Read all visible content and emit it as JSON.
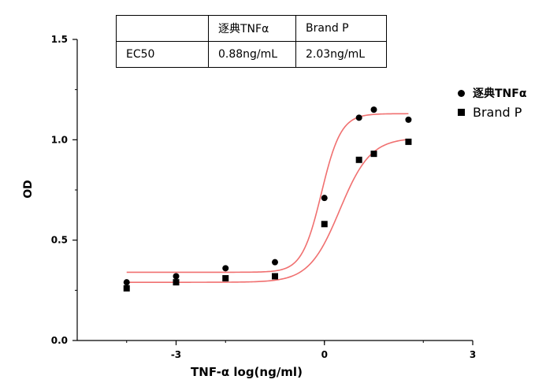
{
  "table": {
    "header": [
      "",
      "逐典TNFα",
      "Brand P"
    ],
    "rows": [
      [
        "EC50",
        "0.88ng/mL",
        "2.03ng/mL"
      ]
    ]
  },
  "legend": [
    {
      "label": "逐典TNFα",
      "marker": "circle"
    },
    {
      "label": "Brand P",
      "marker": "square"
    }
  ],
  "chart_data": {
    "type": "scatter",
    "xlabel": "TNF-α  log(ng/ml)",
    "ylabel": "OD",
    "xlim": [
      -5,
      3
    ],
    "ylim": [
      0,
      1.5
    ],
    "xticks": [
      -3,
      0,
      3
    ],
    "xtick_labels": [
      "-3",
      "0",
      "3"
    ],
    "yticks": [
      0.0,
      0.5,
      1.0,
      1.5
    ],
    "ytick_labels": [
      "0.0",
      "0.5",
      "1.0",
      "1.5"
    ],
    "grid": false,
    "curve_color": "#f07070",
    "series": [
      {
        "name": "逐典TNFα",
        "marker": "circle",
        "x": [
          -4.0,
          -3.0,
          -2.0,
          -1.0,
          0.0,
          0.7,
          1.0,
          1.7
        ],
        "y": [
          0.29,
          0.32,
          0.36,
          0.39,
          0.71,
          1.11,
          1.15,
          1.1
        ],
        "fit": {
          "bottom": 0.34,
          "top": 1.13,
          "logec50": -0.06,
          "hill": 2.2
        }
      },
      {
        "name": "Brand P",
        "marker": "square",
        "x": [
          -4.0,
          -3.0,
          -2.0,
          -1.0,
          0.0,
          0.7,
          1.0,
          1.7
        ],
        "y": [
          0.26,
          0.29,
          0.31,
          0.32,
          0.58,
          0.9,
          0.93,
          0.99
        ],
        "fit": {
          "bottom": 0.29,
          "top": 1.01,
          "logec50": 0.31,
          "hill": 1.4
        }
      }
    ]
  }
}
